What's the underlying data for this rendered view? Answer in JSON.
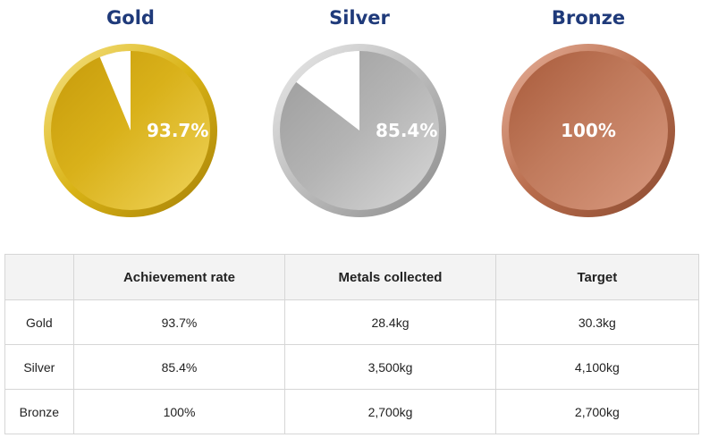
{
  "chart_data": {
    "type": "pie",
    "charts": [
      {
        "title": "Gold",
        "value": 93.7,
        "label": "93.7%",
        "color": "#d8b014"
      },
      {
        "title": "Silver",
        "value": 85.4,
        "label": "85.4%",
        "color": "#b0b0b0"
      },
      {
        "title": "Bronze",
        "value": 100,
        "label": "100%",
        "color": "#b8684a"
      }
    ]
  },
  "table": {
    "headers": [
      "",
      "Achievement rate",
      "Metals collected",
      "Target"
    ],
    "rows": [
      [
        "Gold",
        "93.7%",
        "28.4kg",
        "30.3kg"
      ],
      [
        "Silver",
        "85.4%",
        "3,500kg",
        "4,100kg"
      ],
      [
        "Bronze",
        "100%",
        "2,700kg",
        "2,700kg"
      ]
    ]
  }
}
